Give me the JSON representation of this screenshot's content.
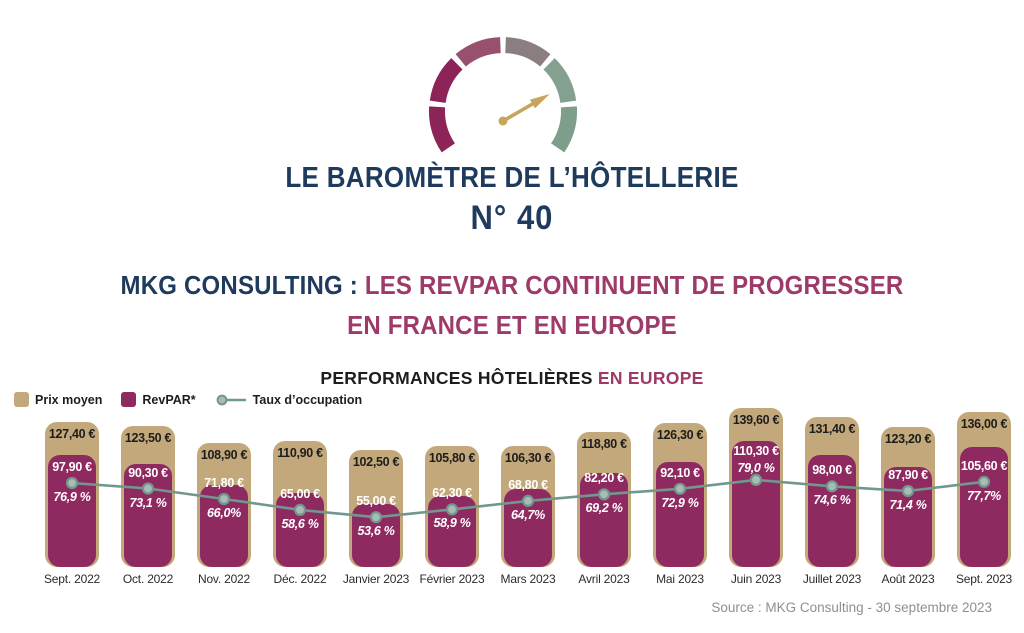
{
  "page": {
    "background": "#ffffff"
  },
  "gauge": {
    "segment_colors": [
      "#8c2458",
      "#8c2458",
      "#97506d",
      "#8b7e80",
      "#84a091",
      "#7c9e8b"
    ],
    "needle_color": "#c8a55c",
    "needle_angle_deg": 30
  },
  "header": {
    "title": "LE BAROMÈTRE DE L’HÔTELLERIE",
    "issue_number": "N° 40",
    "title_color": "#1e3a5c"
  },
  "headline": {
    "prefix": "MKG CONSULTING : ",
    "line1_accent": "LES REVPAR CONTINUENT DE PROGRESSER",
    "line2_accent": "EN FRANCE ET EN EUROPE",
    "prefix_color": "#1e3a5c",
    "accent_color": "#9d3a68"
  },
  "chart": {
    "title_main": "PERFORMANCES HÔTELIÈRES ",
    "title_accent": "EN EUROPE",
    "accent_color": "#9d3a68"
  },
  "chart_data": {
    "type": "bar",
    "title": "PERFORMANCES HÔTELIÈRES EN EUROPE",
    "grid": false,
    "legend_position": "top-left",
    "ylim_eur": [
      0,
      150
    ],
    "ylim_pct": [
      0,
      100
    ],
    "categories": [
      "Sept. 2022",
      "Oct. 2022",
      "Nov. 2022",
      "Déc. 2022",
      "Janvier 2023",
      "Février 2023",
      "Mars 2023",
      "Avril 2023",
      "Mai 2023",
      "Juin 2023",
      "Juillet 2023",
      "Août 2023",
      "Sept. 2023"
    ],
    "series": [
      {
        "name": "Prix moyen",
        "role": "bar",
        "unit": "€",
        "color": "#c3a87c",
        "values": [
          127.4,
          123.5,
          108.9,
          110.9,
          102.5,
          105.8,
          106.3,
          118.8,
          126.3,
          139.6,
          131.4,
          123.2,
          136.0
        ],
        "labels": [
          "127,40 €",
          "123,50 €",
          "108,90 €",
          "110,90 €",
          "102,50 €",
          "105,80 €",
          "106,30 €",
          "118,80 €",
          "126,30 €",
          "139,60 €",
          "131,40 €",
          "123,20 €",
          "136,00 €"
        ]
      },
      {
        "name": "RevPAR*",
        "role": "bar",
        "unit": "€",
        "color": "#8f2a61",
        "values": [
          97.9,
          90.3,
          71.8,
          65.0,
          55.0,
          62.3,
          68.8,
          82.2,
          92.1,
          110.3,
          98.0,
          87.9,
          105.6
        ],
        "labels": [
          "97,90 €",
          "90,30 €",
          "71,80 €",
          "65,00 €",
          "55,00 €",
          "62,30 €",
          "68,80 €",
          "82,20 €",
          "92,10 €",
          "110,30 €",
          "98,00 €",
          "87,90 €",
          "105,60 €"
        ]
      },
      {
        "name": "Taux d’occupation",
        "role": "line",
        "unit": "%",
        "color": "#71978e",
        "dot_fill": "#a9bcb3",
        "values": [
          76.9,
          73.1,
          66.0,
          58.6,
          53.6,
          58.9,
          64.7,
          69.2,
          72.9,
          79.0,
          74.6,
          71.4,
          77.7
        ],
        "labels": [
          "76,9 %",
          "73,1 %",
          "66,0%",
          "58,6 %",
          "53,6 %",
          "58,9 %",
          "64,7%",
          "69,2 %",
          "72,9 %",
          "79,0 %",
          "74,6 %",
          "71,4 %",
          "77,7%"
        ],
        "label_positions": [
          "below",
          "below",
          "below",
          "below",
          "below",
          "below",
          "below",
          "below",
          "below",
          "above",
          "below",
          "below",
          "below"
        ]
      }
    ]
  },
  "footer": {
    "source": "Source : MKG Consulting - 30 septembre 2023"
  }
}
